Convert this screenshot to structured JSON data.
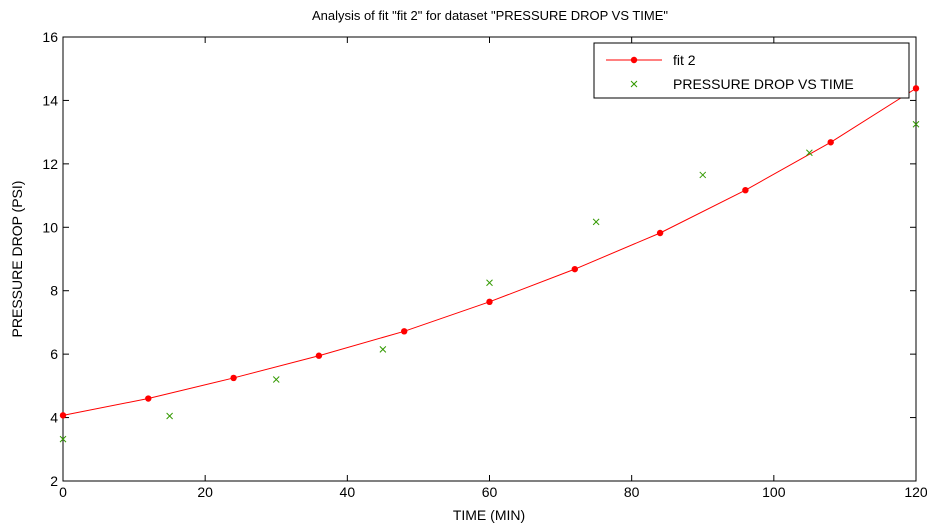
{
  "chart_data": {
    "type": "scatter",
    "title": "Analysis of fit \"fit 2\" for dataset \"PRESSURE DROP VS TIME\"",
    "xlabel": "TIME (MIN)",
    "ylabel": "PRESSURE DROP (PSI)",
    "xlim": [
      0,
      120
    ],
    "ylim": [
      2,
      16
    ],
    "xticks": [
      0,
      20,
      40,
      60,
      80,
      100,
      120
    ],
    "yticks": [
      2,
      4,
      6,
      8,
      10,
      12,
      14,
      16
    ],
    "grid": false,
    "legend_position": "top-right",
    "series": [
      {
        "name": "fit 2",
        "kind": "line-with-markers",
        "color": "#ff0000",
        "x": [
          0,
          12,
          24,
          36,
          48,
          60,
          72,
          84,
          96,
          108,
          120
        ],
        "y": [
          4.07,
          4.6,
          5.25,
          5.95,
          6.72,
          7.65,
          8.68,
          9.82,
          11.17,
          12.68,
          14.38
        ]
      },
      {
        "name": "PRESSURE DROP VS TIME",
        "kind": "markers",
        "marker": "x",
        "color": "#339900",
        "x": [
          0,
          15,
          30,
          45,
          60,
          75,
          90,
          105,
          120
        ],
        "y": [
          3.32,
          4.05,
          5.2,
          6.15,
          8.25,
          10.17,
          11.65,
          12.35,
          13.25
        ]
      }
    ]
  }
}
